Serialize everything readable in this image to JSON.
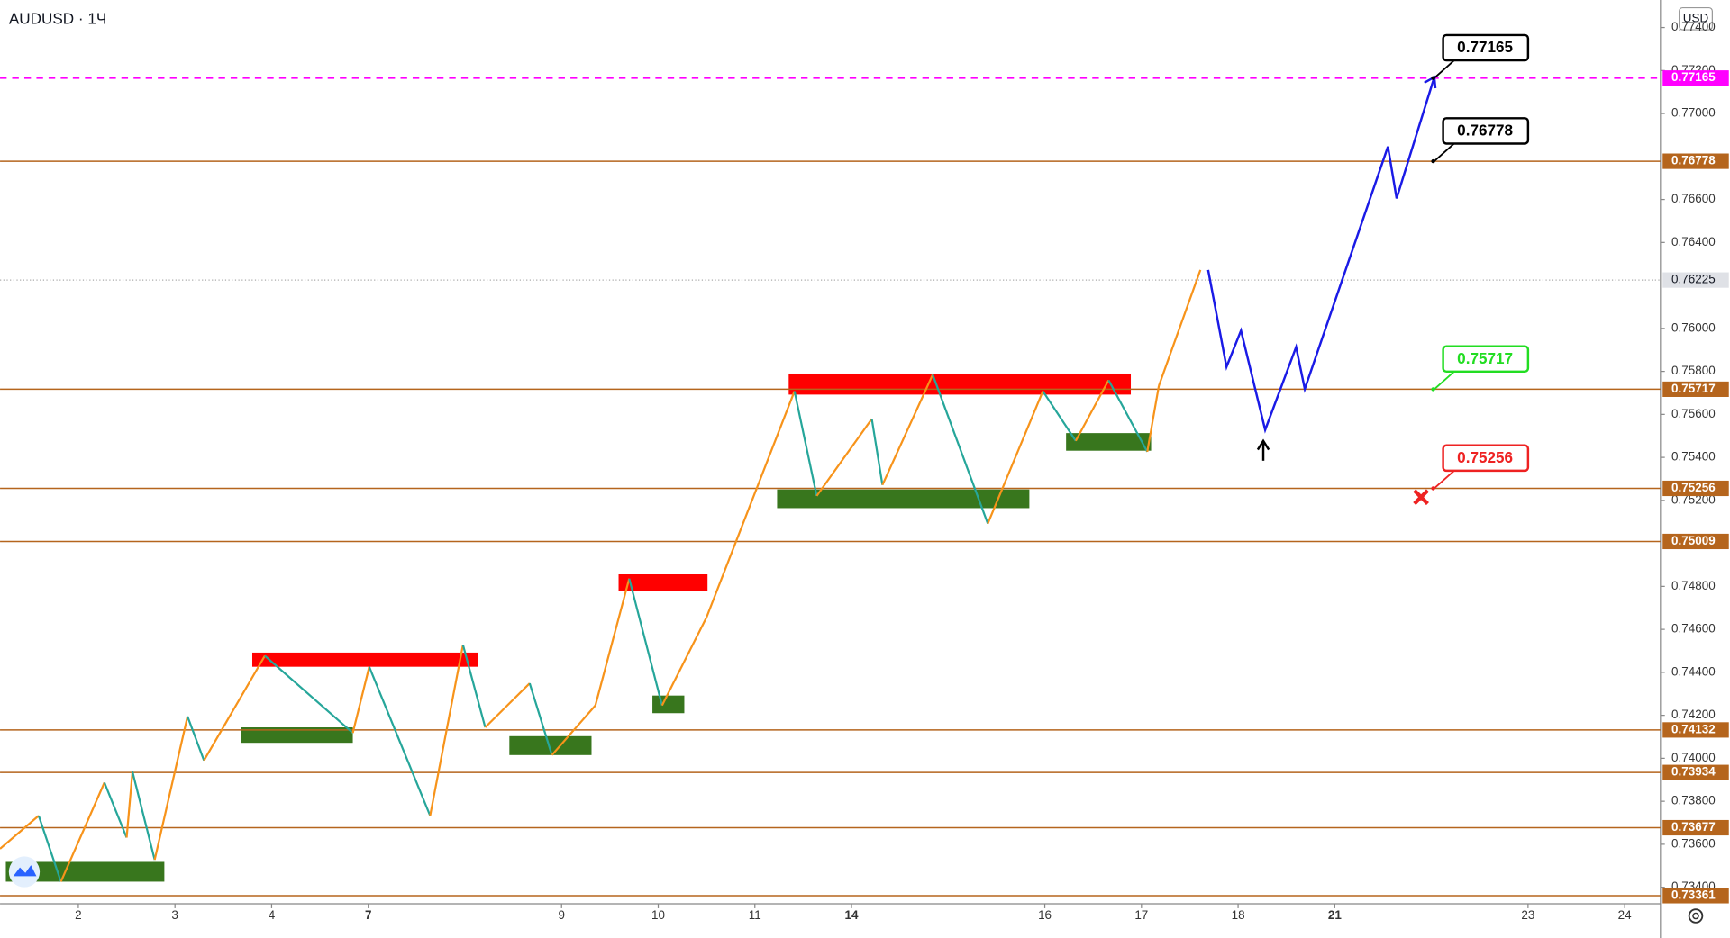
{
  "chart_data": {
    "type": "line",
    "title": "AUDUSD · 1Ч",
    "currency": "USD",
    "xlim": [
      -0.81,
      16.37
    ],
    "xticks": [
      {
        "value": 0,
        "label": "2"
      },
      {
        "value": 1,
        "label": "3"
      },
      {
        "value": 2,
        "label": "4"
      },
      {
        "value": 3,
        "label": "7",
        "bold": true
      },
      {
        "value": 5,
        "label": "9"
      },
      {
        "value": 6,
        "label": "10"
      },
      {
        "value": 7,
        "label": "11"
      },
      {
        "value": 8,
        "label": "14",
        "bold": true
      },
      {
        "value": 10,
        "label": "16"
      },
      {
        "value": 11,
        "label": "17"
      },
      {
        "value": 12,
        "label": "18"
      },
      {
        "value": 13,
        "label": "21",
        "bold": true
      },
      {
        "value": 15,
        "label": "23"
      },
      {
        "value": 16,
        "label": "24"
      }
    ],
    "ylim": [
      0.73323,
      0.77528
    ],
    "yticks": [
      {
        "value": 0.734,
        "label": "0.73400"
      },
      {
        "value": 0.736,
        "label": "0.73600"
      },
      {
        "value": 0.738,
        "label": "0.73800"
      },
      {
        "value": 0.74,
        "label": "0.74000"
      },
      {
        "value": 0.742,
        "label": "0.74200"
      },
      {
        "value": 0.744,
        "label": "0.74400"
      },
      {
        "value": 0.746,
        "label": "0.74600"
      },
      {
        "value": 0.748,
        "label": "0.74800"
      },
      {
        "value": 0.752,
        "label": "0.75200"
      },
      {
        "value": 0.754,
        "label": "0.75400"
      },
      {
        "value": 0.756,
        "label": "0.75600"
      },
      {
        "value": 0.758,
        "label": "0.75800"
      },
      {
        "value": 0.76,
        "label": "0.76000"
      },
      {
        "value": 0.764,
        "label": "0.76400"
      },
      {
        "value": 0.766,
        "label": "0.76600"
      },
      {
        "value": 0.77,
        "label": "0.77000"
      },
      {
        "value": 0.772,
        "label": "0.77200"
      },
      {
        "value": 0.774,
        "label": "0.77400"
      }
    ],
    "price": {
      "up_color": "#f7931a",
      "down_color": "#26a69a",
      "x": [
        -0.81,
        -0.41,
        -0.18,
        0.27,
        0.5,
        0.56,
        0.79,
        1.13,
        1.3,
        1.93,
        2.84,
        3.01,
        3.64,
        3.98,
        4.21,
        4.67,
        4.9,
        5.35,
        5.7,
        6.04,
        6.5,
        7.41,
        7.64,
        8.21,
        8.32,
        8.84,
        9.41,
        9.98,
        10.32,
        10.66,
        11.06,
        11.18,
        11.61
      ],
      "values": [
        0.73579,
        0.73733,
        0.73426,
        0.73887,
        0.73631,
        0.73938,
        0.73528,
        0.74195,
        0.7399,
        0.74477,
        0.74118,
        0.74426,
        0.73733,
        0.74528,
        0.74144,
        0.74349,
        0.74015,
        0.74246,
        0.74836,
        0.74246,
        0.74656,
        0.75708,
        0.75221,
        0.75579,
        0.75272,
        0.75785,
        0.75092,
        0.75708,
        0.75477,
        0.75759,
        0.75426,
        0.75733,
        0.76272
      ]
    },
    "forecast": {
      "color": "#1a1ae6",
      "x": [
        11.69,
        11.88,
        12.03,
        12.28,
        12.6,
        12.69,
        13.55,
        13.64,
        14.03
      ],
      "values": [
        0.76272,
        0.75821,
        0.7599,
        0.75528,
        0.75913,
        0.75718,
        0.76846,
        0.76605,
        0.77169
      ]
    },
    "zones": [
      {
        "color": "#ff0000",
        "x": [
          1.8,
          4.14
        ],
        "y": [
          0.74426,
          0.74492
        ]
      },
      {
        "color": "#ff0000",
        "x": [
          5.59,
          6.51
        ],
        "y": [
          0.74779,
          0.74856
        ]
      },
      {
        "color": "#ff0000",
        "x": [
          7.35,
          10.89
        ],
        "y": [
          0.75692,
          0.7579
        ]
      },
      {
        "color": "#38761d",
        "x": [
          -0.75,
          0.89
        ],
        "y": [
          0.73426,
          0.73518
        ]
      },
      {
        "color": "#38761d",
        "x": [
          1.68,
          2.84
        ],
        "y": [
          0.74072,
          0.74144
        ]
      },
      {
        "color": "#38761d",
        "x": [
          4.46,
          5.31
        ],
        "y": [
          0.74015,
          0.74103
        ]
      },
      {
        "color": "#38761d",
        "x": [
          5.94,
          6.27
        ],
        "y": [
          0.7421,
          0.74292
        ]
      },
      {
        "color": "#38761d",
        "x": [
          7.23,
          9.84
        ],
        "y": [
          0.75164,
          0.75251
        ]
      },
      {
        "color": "#38761d",
        "x": [
          10.22,
          11.1
        ],
        "y": [
          0.75431,
          0.75513
        ]
      }
    ],
    "levels": [
      {
        "value": 0.77165,
        "label": "0.77165",
        "color": "#ff00ff",
        "dashed": true
      },
      {
        "value": 0.76778,
        "label": "0.76778",
        "color": "#b5651d"
      },
      {
        "value": 0.75717,
        "label": "0.75717",
        "color": "#b5651d"
      },
      {
        "value": 0.75256,
        "label": "0.75256",
        "color": "#b5651d"
      },
      {
        "value": 0.75009,
        "label": "0.75009",
        "color": "#b5651d"
      },
      {
        "value": 0.74132,
        "label": "0.74132",
        "color": "#b5651d"
      },
      {
        "value": 0.73934,
        "label": "0.73934",
        "color": "#b5651d"
      },
      {
        "value": 0.73677,
        "label": "0.73677",
        "color": "#b5651d"
      },
      {
        "value": 0.73361,
        "label": "0.73361",
        "color": "#b5651d"
      }
    ],
    "current_price": {
      "value": 0.76225,
      "label": "0.76225"
    },
    "annotations": [
      {
        "value": 0.77165,
        "label": "0.77165",
        "color": "#000000"
      },
      {
        "value": 0.76778,
        "label": "0.76778",
        "color": "#000000"
      },
      {
        "value": 0.75717,
        "label": "0.75717",
        "color": "#22dd22"
      },
      {
        "value": 0.75256,
        "label": "0.75256",
        "color": "#ee2222"
      }
    ]
  }
}
